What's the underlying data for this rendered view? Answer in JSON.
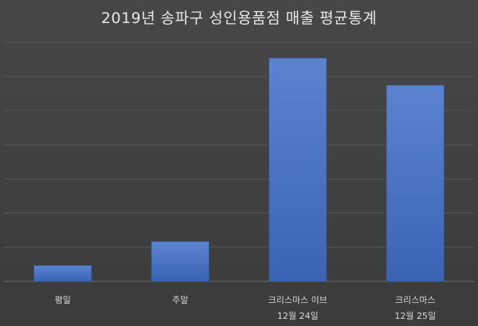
{
  "chart_data": {
    "type": "bar",
    "title": "2019년 송파구 성인용품점 매출 평균통계",
    "categories": [
      [
        "평일"
      ],
      [
        "주말"
      ],
      [
        "크리스마스 이브",
        "12월 24일"
      ],
      [
        "크리스마스",
        "12월 25일"
      ]
    ],
    "values": [
      20,
      50,
      280,
      246
    ],
    "ylim": [
      0,
      300
    ],
    "ygrid_step": 42.857,
    "grid": true,
    "legend": "none",
    "bar_color": "#4472c4",
    "bar_color_light": "#5b83d0"
  }
}
